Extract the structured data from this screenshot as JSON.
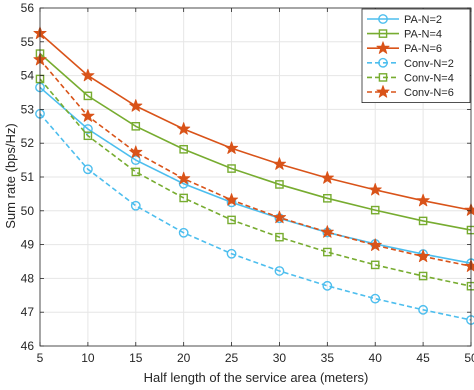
{
  "chart_data": {
    "type": "line",
    "title": "",
    "xlabel": "Half length of the service area (meters)",
    "ylabel": "Sum rate (bps/Hz)",
    "x": [
      5,
      10,
      15,
      20,
      25,
      30,
      35,
      40,
      45,
      50
    ],
    "xlim": [
      5,
      50
    ],
    "ylim": [
      46,
      56
    ],
    "xticks": [
      "5",
      "10",
      "15",
      "20",
      "25",
      "30",
      "35",
      "40",
      "45",
      "50"
    ],
    "yticks": [
      "46",
      "47",
      "48",
      "49",
      "50",
      "51",
      "52",
      "53",
      "54",
      "55",
      "56"
    ],
    "grid": true,
    "legend_position": "top-right",
    "series": [
      {
        "name": "PA-N=2",
        "color": "#4DBEEE",
        "marker": "circle",
        "dashed": false,
        "values": [
          53.65,
          52.42,
          51.5,
          50.8,
          50.25,
          49.78,
          49.36,
          49.02,
          48.72,
          48.45
        ]
      },
      {
        "name": "PA-N=4",
        "color": "#77AC30",
        "marker": "square",
        "dashed": false,
        "values": [
          54.65,
          53.4,
          52.5,
          51.82,
          51.25,
          50.78,
          50.37,
          50.02,
          49.7,
          49.43
        ]
      },
      {
        "name": "PA-N=6",
        "color": "#D95319",
        "marker": "star",
        "dashed": false,
        "values": [
          55.25,
          54.0,
          53.1,
          52.42,
          51.85,
          51.38,
          50.97,
          50.62,
          50.3,
          50.02
        ]
      },
      {
        "name": "Conv-N=2",
        "color": "#4DBEEE",
        "marker": "circle",
        "dashed": true,
        "values": [
          52.87,
          51.23,
          50.15,
          49.35,
          48.73,
          48.22,
          47.78,
          47.4,
          47.07,
          46.77
        ]
      },
      {
        "name": "Conv-N=4",
        "color": "#77AC30",
        "marker": "square",
        "dashed": true,
        "values": [
          53.9,
          52.22,
          51.15,
          50.38,
          49.73,
          49.22,
          48.78,
          48.4,
          48.07,
          47.77
        ]
      },
      {
        "name": "Conv-N=6",
        "color": "#D95319",
        "marker": "star",
        "dashed": true,
        "values": [
          54.47,
          52.8,
          51.73,
          50.95,
          50.32,
          49.8,
          49.37,
          48.98,
          48.65,
          48.36
        ]
      }
    ]
  }
}
